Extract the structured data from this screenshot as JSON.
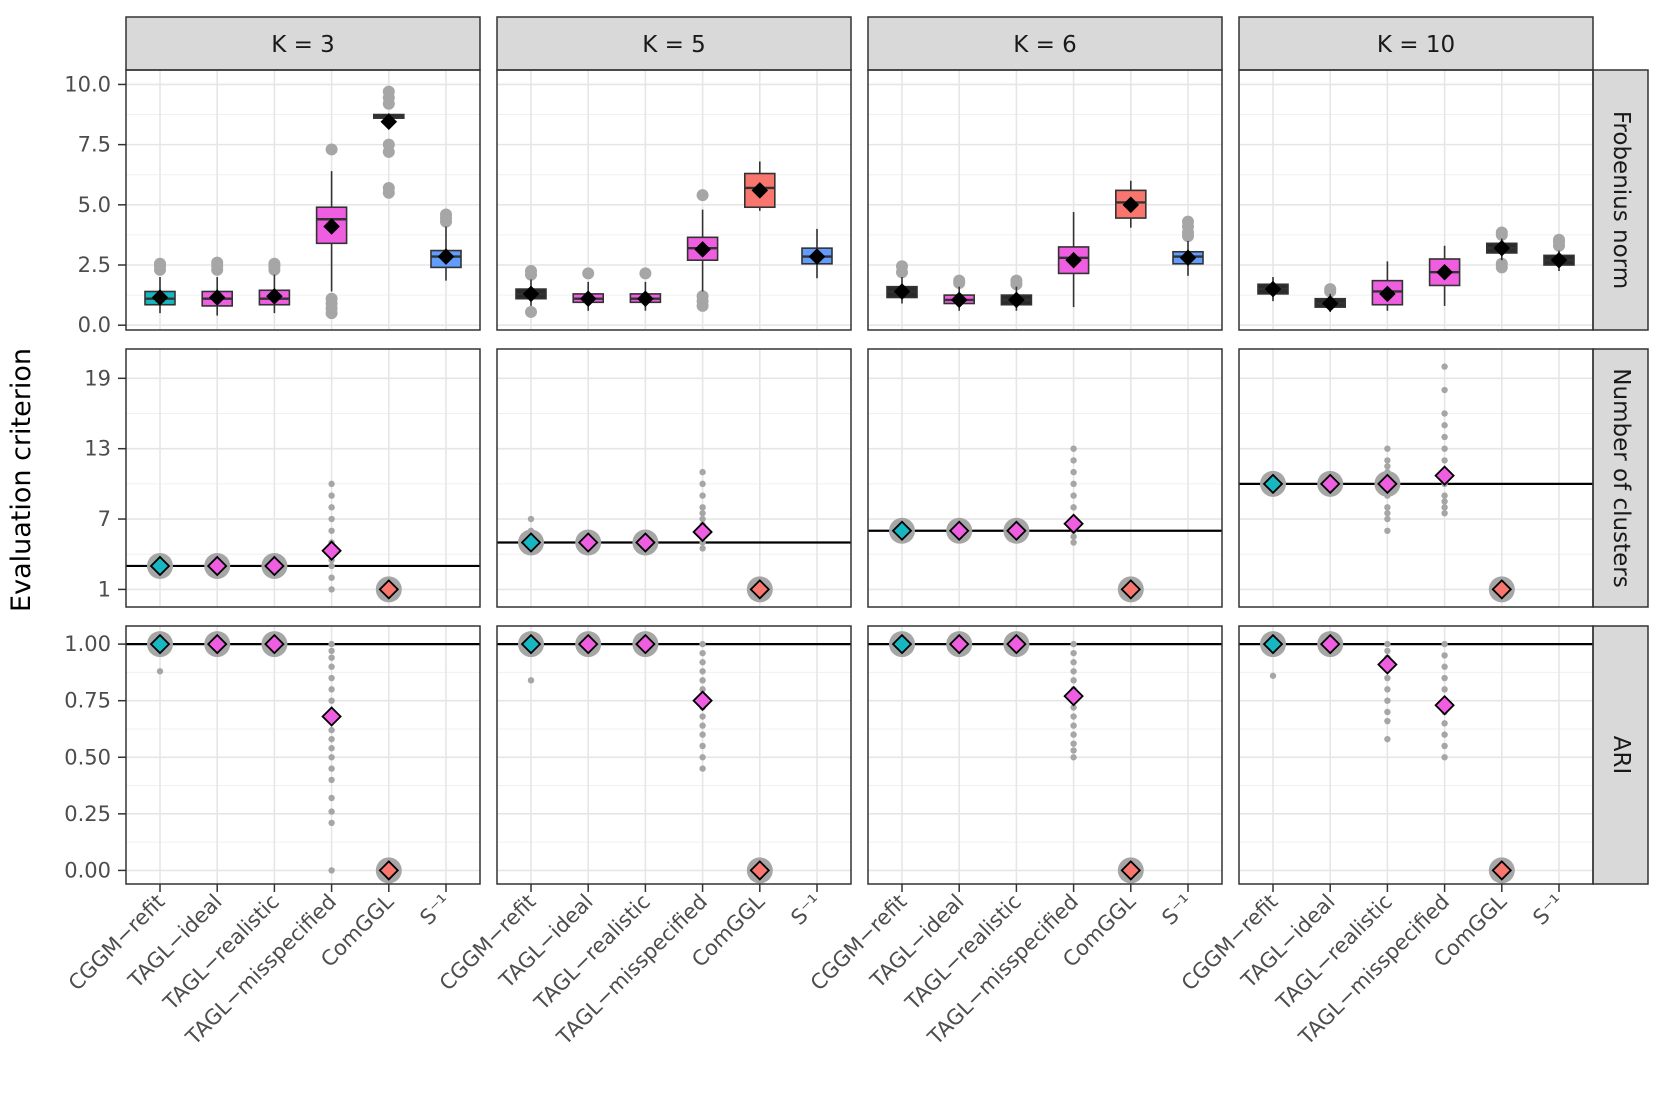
{
  "chart_data": {
    "type": "box",
    "ylabel": "Evaluation criterion",
    "methods": [
      "CGGM−refit",
      "TAGL−ideal",
      "TAGL−realistic",
      "TAGL−misspecified",
      "ComGGL",
      "S⁻¹"
    ],
    "columns": [
      "K = 3",
      "K = 5",
      "K = 6",
      "K = 10"
    ],
    "rows": [
      {
        "label": "Frobenius norm",
        "ylim": [
          -0.2,
          10.6
        ],
        "ticks": [
          0,
          2.5,
          5,
          7.5,
          10
        ],
        "tick_labels": [
          "0.0",
          "2.5",
          "5.0",
          "7.5",
          "10.0"
        ],
        "reference": null
      },
      {
        "label": "Number of clusters",
        "ylim": [
          -0.5,
          21.5
        ],
        "ticks": [
          1,
          7,
          13,
          19
        ],
        "tick_labels": [
          "1",
          "7",
          "13",
          "19"
        ],
        "reference": [
          3,
          5,
          6,
          10
        ]
      },
      {
        "label": "ARI",
        "ylim": [
          -0.06,
          1.08
        ],
        "ticks": [
          0,
          0.25,
          0.5,
          0.75,
          1
        ],
        "tick_labels": [
          "0.00",
          "0.25",
          "0.50",
          "0.75",
          "1.00"
        ],
        "reference": [
          1,
          1,
          1,
          1
        ]
      }
    ],
    "colors": {
      "CGGM−refit": "#17b7c2",
      "TAGL": "#ef5ee0",
      "ComGGL": "#f8766d",
      "S⁻¹": "#619cff",
      "dark": "#2b2b2b",
      "outlier": "#a6a6a6"
    },
    "frobenius": [
      [
        {
          "method": "CGGM−refit",
          "q1": 0.85,
          "med": 1.1,
          "q3": 1.4,
          "lo": 0.5,
          "hi": 2.0,
          "mean": 1.15,
          "color": "#17b7c2",
          "outliers": [
            2.3,
            2.45,
            2.55
          ]
        },
        {
          "method": "TAGL−ideal",
          "q1": 0.8,
          "med": 1.1,
          "q3": 1.4,
          "lo": 0.4,
          "hi": 2.0,
          "mean": 1.15,
          "color": "#ef5ee0",
          "outliers": [
            2.3,
            2.45,
            2.6
          ]
        },
        {
          "method": "TAGL−realistic",
          "q1": 0.85,
          "med": 1.1,
          "q3": 1.45,
          "lo": 0.5,
          "hi": 2.1,
          "mean": 1.2,
          "color": "#ef5ee0",
          "outliers": [
            2.3,
            2.45,
            2.55
          ]
        },
        {
          "method": "TAGL−misspecified",
          "q1": 3.4,
          "med": 4.4,
          "q3": 4.9,
          "lo": 1.4,
          "hi": 6.4,
          "mean": 4.1,
          "color": "#ef5ee0",
          "outliers": [
            0.5,
            0.7,
            0.9,
            1.1,
            7.3
          ]
        },
        {
          "method": "ComGGL",
          "q1": 8.6,
          "med": 8.65,
          "q3": 8.75,
          "lo": 8.5,
          "hi": 8.8,
          "mean": 8.45,
          "color": "#2b2b2b",
          "outliers": [
            5.5,
            5.7,
            7.2,
            7.5,
            9.2,
            9.45,
            9.7
          ]
        },
        {
          "method": "S⁻¹",
          "q1": 2.4,
          "med": 2.85,
          "q3": 3.1,
          "lo": 1.85,
          "hi": 4.1,
          "mean": 2.85,
          "color": "#619cff",
          "outliers": [
            4.3,
            4.45,
            4.6
          ]
        }
      ],
      [
        {
          "method": "CGGM−refit",
          "q1": 1.1,
          "med": 1.3,
          "q3": 1.5,
          "lo": 0.8,
          "hi": 1.9,
          "mean": 1.3,
          "color": "#2b2b2b",
          "outliers": [
            0.55,
            2.1,
            2.25
          ]
        },
        {
          "method": "TAGL−ideal",
          "q1": 0.95,
          "med": 1.1,
          "q3": 1.3,
          "lo": 0.6,
          "hi": 1.8,
          "mean": 1.1,
          "color": "#ef5ee0",
          "outliers": [
            2.15
          ]
        },
        {
          "method": "TAGL−realistic",
          "q1": 0.95,
          "med": 1.1,
          "q3": 1.3,
          "lo": 0.6,
          "hi": 1.8,
          "mean": 1.1,
          "color": "#ef5ee0",
          "outliers": [
            2.15
          ]
        },
        {
          "method": "TAGL−misspecified",
          "q1": 2.7,
          "med": 3.2,
          "q3": 3.65,
          "lo": 1.4,
          "hi": 4.8,
          "mean": 3.15,
          "color": "#ef5ee0",
          "outliers": [
            0.8,
            1.0,
            1.2,
            5.4
          ]
        },
        {
          "method": "ComGGL",
          "q1": 4.9,
          "med": 5.7,
          "q3": 6.3,
          "lo": 4.75,
          "hi": 6.8,
          "mean": 5.6,
          "color": "#f8766d",
          "outliers": []
        },
        {
          "method": "S⁻¹",
          "q1": 2.55,
          "med": 2.85,
          "q3": 3.2,
          "lo": 1.95,
          "hi": 4.0,
          "mean": 2.85,
          "color": "#619cff",
          "outliers": []
        }
      ],
      [
        {
          "method": "CGGM−refit",
          "q1": 1.15,
          "med": 1.4,
          "q3": 1.6,
          "lo": 0.9,
          "hi": 2.0,
          "mean": 1.4,
          "color": "#2b2b2b",
          "outliers": [
            2.2,
            2.45
          ]
        },
        {
          "method": "TAGL−ideal",
          "q1": 0.9,
          "med": 1.05,
          "q3": 1.25,
          "lo": 0.6,
          "hi": 1.6,
          "mean": 1.05,
          "color": "#ef5ee0",
          "outliers": [
            1.75,
            1.85
          ]
        },
        {
          "method": "TAGL−realistic",
          "q1": 0.85,
          "med": 1.05,
          "q3": 1.25,
          "lo": 0.6,
          "hi": 1.6,
          "mean": 1.05,
          "color": "#2b2b2b",
          "outliers": [
            1.7,
            1.85
          ]
        },
        {
          "method": "TAGL−misspecified",
          "q1": 2.15,
          "med": 2.8,
          "q3": 3.25,
          "lo": 0.75,
          "hi": 4.7,
          "mean": 2.7,
          "color": "#ef5ee0",
          "outliers": []
        },
        {
          "method": "ComGGL",
          "q1": 4.45,
          "med": 5.1,
          "q3": 5.6,
          "lo": 4.05,
          "hi": 6.0,
          "mean": 5.0,
          "color": "#f8766d",
          "outliers": []
        },
        {
          "method": "S⁻¹",
          "q1": 2.55,
          "med": 2.85,
          "q3": 3.05,
          "lo": 2.05,
          "hi": 3.5,
          "mean": 2.8,
          "color": "#619cff",
          "outliers": [
            3.7,
            3.85,
            4.1,
            4.3
          ]
        }
      ],
      [
        {
          "method": "CGGM−refit",
          "q1": 1.3,
          "med": 1.5,
          "q3": 1.7,
          "lo": 1.0,
          "hi": 2.0,
          "mean": 1.5,
          "color": "#2b2b2b",
          "outliers": []
        },
        {
          "method": "TAGL−ideal",
          "q1": 0.75,
          "med": 0.9,
          "q3": 1.1,
          "lo": 0.55,
          "hi": 1.3,
          "mean": 0.9,
          "color": "#2b2b2b",
          "outliers": [
            1.4,
            1.5
          ]
        },
        {
          "method": "TAGL−realistic",
          "q1": 0.85,
          "med": 1.4,
          "q3": 1.85,
          "lo": 0.6,
          "hi": 2.65,
          "mean": 1.3,
          "color": "#ef5ee0",
          "outliers": []
        },
        {
          "method": "TAGL−misspecified",
          "q1": 1.65,
          "med": 2.2,
          "q3": 2.75,
          "lo": 0.8,
          "hi": 3.3,
          "mean": 2.2,
          "color": "#ef5ee0",
          "outliers": []
        },
        {
          "method": "ComGGL",
          "q1": 3.0,
          "med": 3.2,
          "q3": 3.4,
          "lo": 2.7,
          "hi": 3.6,
          "mean": 3.2,
          "color": "#2b2b2b",
          "outliers": [
            2.4,
            2.55,
            3.75,
            3.85
          ]
        },
        {
          "method": "S⁻¹",
          "q1": 2.5,
          "med": 2.7,
          "q3": 2.9,
          "lo": 2.25,
          "hi": 3.1,
          "mean": 2.7,
          "color": "#2b2b2b",
          "outliers": [
            3.3,
            3.45,
            3.55
          ]
        }
      ]
    ],
    "clusters": [
      [
        {
          "method": "CGGM−refit",
          "mean": 3,
          "color": "#17b7c2",
          "points": [
            3
          ]
        },
        {
          "method": "TAGL−ideal",
          "mean": 3,
          "color": "#ef5ee0",
          "points": [
            3
          ]
        },
        {
          "method": "TAGL−realistic",
          "mean": 3,
          "color": "#ef5ee0",
          "points": [
            3
          ]
        },
        {
          "method": "TAGL−misspecified",
          "mean": 4.3,
          "color": "#ef5ee0",
          "points": [
            1,
            2,
            3,
            3.5,
            4,
            5,
            6,
            7,
            8,
            9,
            10
          ]
        },
        {
          "method": "ComGGL",
          "mean": 1,
          "color": "#f8766d",
          "points": [
            1
          ]
        }
      ],
      [
        {
          "method": "CGGM−refit",
          "mean": 5,
          "color": "#17b7c2",
          "points": [
            5,
            6,
            7
          ]
        },
        {
          "method": "TAGL−ideal",
          "mean": 5,
          "color": "#ef5ee0",
          "points": [
            5
          ]
        },
        {
          "method": "TAGL−realistic",
          "mean": 5,
          "color": "#ef5ee0",
          "points": [
            5
          ]
        },
        {
          "method": "TAGL−misspecified",
          "mean": 5.9,
          "color": "#ef5ee0",
          "points": [
            4.5,
            5,
            5.5,
            6,
            6.5,
            7,
            7.5,
            8,
            9,
            10,
            11
          ]
        },
        {
          "method": "ComGGL",
          "mean": 1,
          "color": "#f8766d",
          "points": [
            1
          ]
        }
      ],
      [
        {
          "method": "CGGM−refit",
          "mean": 6,
          "color": "#17b7c2",
          "points": [
            6
          ]
        },
        {
          "method": "TAGL−ideal",
          "mean": 6,
          "color": "#ef5ee0",
          "points": [
            6
          ]
        },
        {
          "method": "TAGL−realistic",
          "mean": 6,
          "color": "#ef5ee0",
          "points": [
            6
          ]
        },
        {
          "method": "TAGL−misspecified",
          "mean": 6.6,
          "color": "#ef5ee0",
          "points": [
            5,
            5.5,
            6,
            6.5,
            7,
            8,
            9,
            10,
            11,
            12,
            13
          ]
        },
        {
          "method": "ComGGL",
          "mean": 1,
          "color": "#f8766d",
          "points": [
            1
          ]
        }
      ],
      [
        {
          "method": "CGGM−refit",
          "mean": 10,
          "color": "#17b7c2",
          "points": [
            10
          ]
        },
        {
          "method": "TAGL−ideal",
          "mean": 10,
          "color": "#ef5ee0",
          "points": [
            10
          ]
        },
        {
          "method": "TAGL−realistic",
          "mean": 10,
          "color": "#ef5ee0",
          "points": [
            6,
            7,
            7.5,
            8,
            9,
            10,
            10.5,
            11,
            11.5,
            12,
            13
          ]
        },
        {
          "method": "TAGL−misspecified",
          "mean": 10.7,
          "color": "#ef5ee0",
          "points": [
            7.5,
            8,
            8.5,
            9,
            10,
            11,
            12,
            13,
            14,
            15,
            16,
            18,
            20
          ]
        },
        {
          "method": "ComGGL",
          "mean": 1,
          "color": "#f8766d",
          "points": [
            1
          ]
        }
      ]
    ],
    "ari": [
      [
        {
          "method": "CGGM−refit",
          "mean": 1.0,
          "color": "#17b7c2",
          "points": [
            1.0,
            0.88
          ]
        },
        {
          "method": "TAGL−ideal",
          "mean": 1.0,
          "color": "#ef5ee0",
          "points": [
            1.0
          ]
        },
        {
          "method": "TAGL−realistic",
          "mean": 1.0,
          "color": "#ef5ee0",
          "points": [
            1.0
          ]
        },
        {
          "method": "TAGL−misspecified",
          "mean": 0.68,
          "color": "#ef5ee0",
          "points": [
            1.0,
            0.97,
            0.94,
            0.9,
            0.85,
            0.8,
            0.75,
            0.7,
            0.66,
            0.62,
            0.58,
            0.54,
            0.5,
            0.45,
            0.4,
            0.32,
            0.26,
            0.21,
            0.0
          ]
        },
        {
          "method": "ComGGL",
          "mean": 0.0,
          "color": "#f8766d",
          "points": [
            0.0
          ]
        }
      ],
      [
        {
          "method": "CGGM−refit",
          "mean": 1.0,
          "color": "#17b7c2",
          "points": [
            1.0,
            0.84
          ]
        },
        {
          "method": "TAGL−ideal",
          "mean": 1.0,
          "color": "#ef5ee0",
          "points": [
            1.0
          ]
        },
        {
          "method": "TAGL−realistic",
          "mean": 1.0,
          "color": "#ef5ee0",
          "points": [
            1.0
          ]
        },
        {
          "method": "TAGL−misspecified",
          "mean": 0.75,
          "color": "#ef5ee0",
          "points": [
            1.0,
            0.96,
            0.92,
            0.88,
            0.84,
            0.8,
            0.76,
            0.72,
            0.68,
            0.64,
            0.6,
            0.55,
            0.5,
            0.45
          ]
        },
        {
          "method": "ComGGL",
          "mean": 0.0,
          "color": "#f8766d",
          "points": [
            0.0
          ]
        }
      ],
      [
        {
          "method": "CGGM−refit",
          "mean": 1.0,
          "color": "#17b7c2",
          "points": [
            1.0
          ]
        },
        {
          "method": "TAGL−ideal",
          "mean": 1.0,
          "color": "#ef5ee0",
          "points": [
            1.0
          ]
        },
        {
          "method": "TAGL−realistic",
          "mean": 1.0,
          "color": "#ef5ee0",
          "points": [
            1.0
          ]
        },
        {
          "method": "TAGL−misspecified",
          "mean": 0.77,
          "color": "#ef5ee0",
          "points": [
            1.0,
            0.96,
            0.92,
            0.88,
            0.84,
            0.8,
            0.76,
            0.72,
            0.68,
            0.64,
            0.6,
            0.56,
            0.53,
            0.5
          ]
        },
        {
          "method": "ComGGL",
          "mean": 0.0,
          "color": "#f8766d",
          "points": [
            0.0
          ]
        }
      ],
      [
        {
          "method": "CGGM−refit",
          "mean": 1.0,
          "color": "#17b7c2",
          "points": [
            1.0,
            0.86
          ]
        },
        {
          "method": "TAGL−ideal",
          "mean": 1.0,
          "color": "#ef5ee0",
          "points": [
            1.0
          ]
        },
        {
          "method": "TAGL−realistic",
          "mean": 0.91,
          "color": "#ef5ee0",
          "points": [
            1.0,
            0.97,
            0.94,
            0.9,
            0.85,
            0.8,
            0.75,
            0.7,
            0.66,
            0.58
          ]
        },
        {
          "method": "TAGL−misspecified",
          "mean": 0.73,
          "color": "#ef5ee0",
          "points": [
            1.0,
            0.95,
            0.9,
            0.85,
            0.8,
            0.75,
            0.7,
            0.65,
            0.6,
            0.55,
            0.5
          ]
        },
        {
          "method": "ComGGL",
          "mean": 0.0,
          "color": "#f8766d",
          "points": [
            0.0
          ]
        }
      ]
    ]
  }
}
